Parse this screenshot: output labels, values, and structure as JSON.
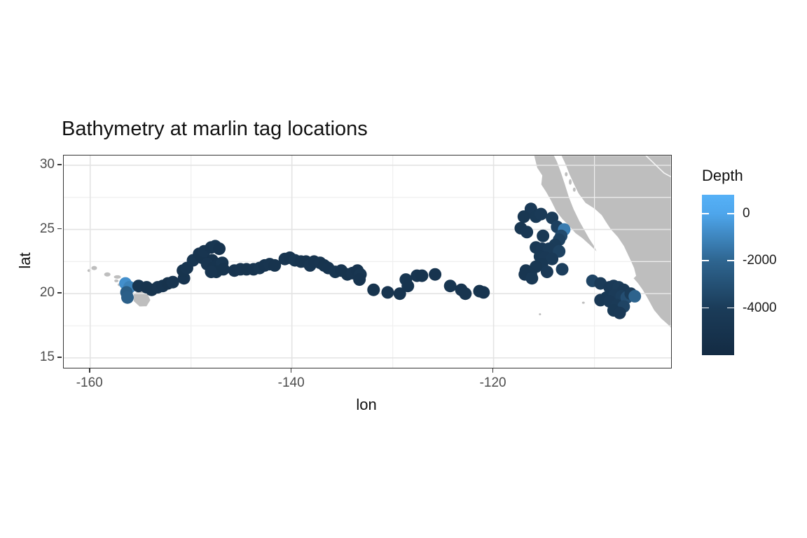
{
  "title": "Bathymetry at marlin tag locations",
  "legend": {
    "title": "Depth",
    "domain": [
      800,
      -6000
    ],
    "ticks": [
      {
        "value": 0,
        "label": "0"
      },
      {
        "value": -2000,
        "label": "-2000"
      },
      {
        "value": -4000,
        "label": "-4000"
      }
    ],
    "gradient": [
      {
        "value": 800,
        "color": "#56B1F7"
      },
      {
        "value": 0,
        "color": "#4EA6EC"
      },
      {
        "value": -2000,
        "color": "#2E6590"
      },
      {
        "value": -4000,
        "color": "#1B3C59"
      },
      {
        "value": -6000,
        "color": "#132B43"
      }
    ]
  },
  "colors": {
    "land": "#BEBEBE",
    "grid_major": "#E3E3E3",
    "grid_minor": "#EFEFEF",
    "panel_border": "#343434",
    "map_border_line": "#F5F5F5"
  },
  "map": {
    "polygons": [
      {
        "name": "baja-california",
        "points": [
          [
            -116.0,
            30.76
          ],
          [
            -115.7,
            29.8
          ],
          [
            -115.2,
            29.2
          ],
          [
            -115.3,
            28.5
          ],
          [
            -114.8,
            27.9
          ],
          [
            -114.3,
            27.2
          ],
          [
            -113.8,
            26.4
          ],
          [
            -113.2,
            25.8
          ],
          [
            -112.5,
            25.25
          ],
          [
            -111.9,
            24.7
          ],
          [
            -111.2,
            24.3
          ],
          [
            -110.5,
            23.8
          ],
          [
            -109.7,
            23.2
          ],
          [
            -110.0,
            23.7
          ],
          [
            -110.5,
            24.3
          ],
          [
            -111.0,
            25.0
          ],
          [
            -111.5,
            25.7
          ],
          [
            -112.05,
            26.6
          ],
          [
            -112.5,
            27.5
          ],
          [
            -112.9,
            28.5
          ],
          [
            -113.3,
            29.45
          ],
          [
            -113.7,
            30.3
          ],
          [
            -114.0,
            30.76
          ]
        ]
      },
      {
        "name": "mainland-mexico",
        "points": [
          [
            -113.3,
            30.76
          ],
          [
            -112.9,
            30.1
          ],
          [
            -112.5,
            29.3
          ],
          [
            -112.1,
            28.6
          ],
          [
            -111.6,
            27.8
          ],
          [
            -110.9,
            27.05
          ],
          [
            -110.0,
            26.6
          ],
          [
            -109.3,
            26.1
          ],
          [
            -108.9,
            25.6
          ],
          [
            -108.4,
            25.0
          ],
          [
            -107.7,
            24.4
          ],
          [
            -107.1,
            23.7
          ],
          [
            -106.5,
            22.7
          ],
          [
            -106.1,
            22.0
          ],
          [
            -105.9,
            21.4
          ],
          [
            -106.15,
            21.2
          ],
          [
            -105.7,
            20.8
          ],
          [
            -105.25,
            20.3
          ],
          [
            -104.8,
            19.7
          ],
          [
            -104.1,
            18.7
          ],
          [
            -103.4,
            18.05
          ],
          [
            -102.75,
            17.6
          ],
          [
            -102.4,
            17.3
          ],
          [
            -102.4,
            30.76
          ]
        ]
      },
      {
        "name": "hawaii-big-island",
        "points": [
          [
            -155.7,
            20.0
          ],
          [
            -155.0,
            20.3
          ],
          [
            -154.3,
            20.0
          ],
          [
            -154.0,
            19.5
          ],
          [
            -154.4,
            19.0
          ],
          [
            -155.1,
            18.98
          ],
          [
            -155.7,
            19.4
          ]
        ]
      }
    ],
    "islands": [
      {
        "name": "kauai",
        "lon": -159.6,
        "lat": 22.0,
        "rx": 4,
        "ry": 3
      },
      {
        "name": "niihau",
        "lon": -160.1,
        "lat": 21.8,
        "rx": 2.5,
        "ry": 2
      },
      {
        "name": "oahu",
        "lon": -158.3,
        "lat": 21.5,
        "rx": 4.5,
        "ry": 3
      },
      {
        "name": "molokai",
        "lon": -157.3,
        "lat": 21.3,
        "rx": 5,
        "ry": 2.5
      },
      {
        "name": "lanai",
        "lon": -157.4,
        "lat": 21.0,
        "rx": 3,
        "ry": 2
      },
      {
        "name": "maui",
        "lon": -156.4,
        "lat": 20.9,
        "rx": 7,
        "ry": 5
      },
      {
        "name": "kahoolawe",
        "lon": -157.1,
        "lat": 20.7,
        "rx": 2.5,
        "ry": 2
      },
      {
        "name": "gulf-island-1",
        "lon": -112.8,
        "lat": 29.3,
        "rx": 2,
        "ry": 3
      },
      {
        "name": "gulf-island-2",
        "lon": -112.4,
        "lat": 28.7,
        "rx": 2,
        "ry": 4
      },
      {
        "name": "gulf-island-3",
        "lon": -112.0,
        "lat": 28.1,
        "rx": 2,
        "ry": 3
      },
      {
        "name": "islet-1",
        "lon": -111.1,
        "lat": 19.3,
        "rx": 2,
        "ry": 1.5
      },
      {
        "name": "islet-2",
        "lon": -115.4,
        "lat": 18.4,
        "rx": 1.5,
        "ry": 1.5
      }
    ],
    "border_lines": [
      {
        "name": "state-border",
        "points": [
          [
            -104.9,
            30.76
          ],
          [
            -103.9,
            30.0
          ],
          [
            -103.1,
            29.4
          ],
          [
            -102.4,
            29.1
          ]
        ]
      }
    ]
  },
  "chart_data": {
    "type": "scatter",
    "title": "Bathymetry at marlin tag locations",
    "xlabel": "lon",
    "ylabel": "lat",
    "xlim": [
      -162.62,
      -102.4
    ],
    "ylim": [
      14.23,
      30.76
    ],
    "x_major_ticks": [
      -160,
      -140,
      -120
    ],
    "x_minor_ticks": [
      -150,
      -130,
      -110
    ],
    "x_tick_labels": [
      "-160",
      "-140",
      "-120"
    ],
    "y_major_ticks": [
      30,
      25,
      20,
      15
    ],
    "y_minor_ticks": [
      27.5,
      22.5,
      17.5
    ],
    "y_tick_labels": [
      "30",
      "25",
      "20",
      "15"
    ],
    "grid": true,
    "legend_position": "right",
    "series_name": "Depth",
    "points": [
      [
        -156.5,
        20.8,
        -700
      ],
      [
        -156.1,
        20.5,
        -1100
      ],
      [
        -156.4,
        20.1,
        -2400
      ],
      [
        -156.3,
        19.7,
        -2300
      ],
      [
        -155.2,
        20.6,
        -4700
      ],
      [
        -154.4,
        20.5,
        -4900
      ],
      [
        -153.9,
        20.3,
        -5000
      ],
      [
        -153.3,
        20.5,
        -4800
      ],
      [
        -152.8,
        20.6,
        -4900
      ],
      [
        -152.3,
        20.8,
        -5100
      ],
      [
        -151.8,
        20.9,
        -4800
      ],
      [
        -150.7,
        21.2,
        -4900
      ],
      [
        -150.8,
        21.8,
        -5000
      ],
      [
        -150.4,
        22.0,
        -4800
      ],
      [
        -149.8,
        22.6,
        -4700
      ],
      [
        -149.2,
        23.1,
        -4900
      ],
      [
        -148.9,
        22.8,
        -5000
      ],
      [
        -148.7,
        23.3,
        -4800
      ],
      [
        -148.0,
        23.6,
        -4900
      ],
      [
        -147.6,
        23.7,
        -4700
      ],
      [
        -147.2,
        23.5,
        -4900
      ],
      [
        -147.9,
        22.6,
        -5100
      ],
      [
        -148.4,
        22.3,
        -4800
      ],
      [
        -147.8,
        22.0,
        -5000
      ],
      [
        -147.3,
        22.3,
        -4900
      ],
      [
        -146.9,
        22.4,
        -4700
      ],
      [
        -146.8,
        21.9,
        -4900
      ],
      [
        -147.5,
        21.7,
        -5000
      ],
      [
        -148.0,
        21.7,
        -4800
      ],
      [
        -145.7,
        21.8,
        -4900
      ],
      [
        -145.1,
        21.9,
        -4800
      ],
      [
        -144.5,
        21.9,
        -5000
      ],
      [
        -143.8,
        21.9,
        -4900
      ],
      [
        -143.2,
        22.0,
        -4700
      ],
      [
        -142.7,
        22.2,
        -4900
      ],
      [
        -142.2,
        22.3,
        -4800
      ],
      [
        -141.7,
        22.2,
        -5000
      ],
      [
        -140.7,
        22.7,
        -4800
      ],
      [
        -140.2,
        22.8,
        -4900
      ],
      [
        -139.7,
        22.6,
        -4700
      ],
      [
        -139.1,
        22.5,
        -4900
      ],
      [
        -138.6,
        22.5,
        -5000
      ],
      [
        -138.2,
        22.2,
        -4800
      ],
      [
        -137.8,
        22.5,
        -4900
      ],
      [
        -137.2,
        22.4,
        -4800
      ],
      [
        -136.8,
        22.2,
        -5000
      ],
      [
        -136.4,
        22.0,
        -4900
      ],
      [
        -135.7,
        21.7,
        -4700
      ],
      [
        -135.1,
        21.8,
        -4900
      ],
      [
        -134.5,
        21.5,
        -5000
      ],
      [
        -134.0,
        21.6,
        -4800
      ],
      [
        -133.5,
        21.8,
        -4900
      ],
      [
        -133.2,
        21.5,
        -4700
      ],
      [
        -133.3,
        21.1,
        -4900
      ],
      [
        -131.9,
        20.3,
        -5000
      ],
      [
        -130.5,
        20.1,
        -4800
      ],
      [
        -129.3,
        20.0,
        -4900
      ],
      [
        -128.7,
        21.1,
        -4700
      ],
      [
        -128.5,
        20.6,
        -4900
      ],
      [
        -127.6,
        21.4,
        -4800
      ],
      [
        -127.1,
        21.4,
        -5000
      ],
      [
        -125.8,
        21.5,
        -4900
      ],
      [
        -124.3,
        20.6,
        -4700
      ],
      [
        -123.2,
        20.3,
        -4900
      ],
      [
        -122.8,
        20.0,
        -4800
      ],
      [
        -121.4,
        20.2,
        -5000
      ],
      [
        -121.0,
        20.1,
        -4900
      ],
      [
        -116.3,
        26.6,
        -4300
      ],
      [
        -117.0,
        26.0,
        -4600
      ],
      [
        -115.8,
        26.0,
        -4400
      ],
      [
        -115.3,
        26.2,
        -4200
      ],
      [
        -114.2,
        25.9,
        -4000
      ],
      [
        -117.3,
        25.1,
        -4600
      ],
      [
        -116.7,
        24.8,
        -4500
      ],
      [
        -113.7,
        25.2,
        -3800
      ],
      [
        -113.0,
        25.0,
        -1300
      ],
      [
        -113.3,
        24.5,
        -3300
      ],
      [
        -115.1,
        24.5,
        -4400
      ],
      [
        -113.5,
        24.2,
        -3700
      ],
      [
        -113.9,
        23.8,
        -4000
      ],
      [
        -115.8,
        23.6,
        -4500
      ],
      [
        -115.2,
        23.5,
        -4300
      ],
      [
        -114.5,
        23.5,
        -4100
      ],
      [
        -113.5,
        23.3,
        -3700
      ],
      [
        -115.4,
        22.9,
        -4400
      ],
      [
        -114.9,
        22.8,
        -4300
      ],
      [
        -114.2,
        22.7,
        -4200
      ],
      [
        -115.2,
        22.3,
        -4500
      ],
      [
        -115.8,
        22.1,
        -4600
      ],
      [
        -116.8,
        21.8,
        -4700
      ],
      [
        -114.7,
        21.7,
        -4300
      ],
      [
        -113.2,
        21.9,
        -3900
      ],
      [
        -116.3,
        21.5,
        -4600
      ],
      [
        -116.9,
        21.5,
        -4700
      ],
      [
        -116.2,
        21.2,
        -4500
      ],
      [
        -110.2,
        21.0,
        -3600
      ],
      [
        -109.4,
        20.8,
        -4100
      ],
      [
        -108.5,
        20.5,
        -4300
      ],
      [
        -108.1,
        20.6,
        -4200
      ],
      [
        -107.6,
        20.5,
        -4000
      ],
      [
        -107.1,
        20.3,
        -4200
      ],
      [
        -108.8,
        19.7,
        -4400
      ],
      [
        -108.0,
        19.9,
        -4100
      ],
      [
        -107.3,
        19.8,
        -3900
      ],
      [
        -106.8,
        19.7,
        -3100
      ],
      [
        -106.4,
        20.0,
        -4000
      ],
      [
        -106.0,
        19.8,
        -2100
      ],
      [
        -109.4,
        19.5,
        -4500
      ],
      [
        -108.5,
        19.4,
        -4300
      ],
      [
        -107.8,
        19.1,
        -4200
      ],
      [
        -107.1,
        19.0,
        -3600
      ],
      [
        -108.1,
        18.7,
        -4400
      ],
      [
        -107.5,
        18.5,
        -4300
      ]
    ]
  }
}
